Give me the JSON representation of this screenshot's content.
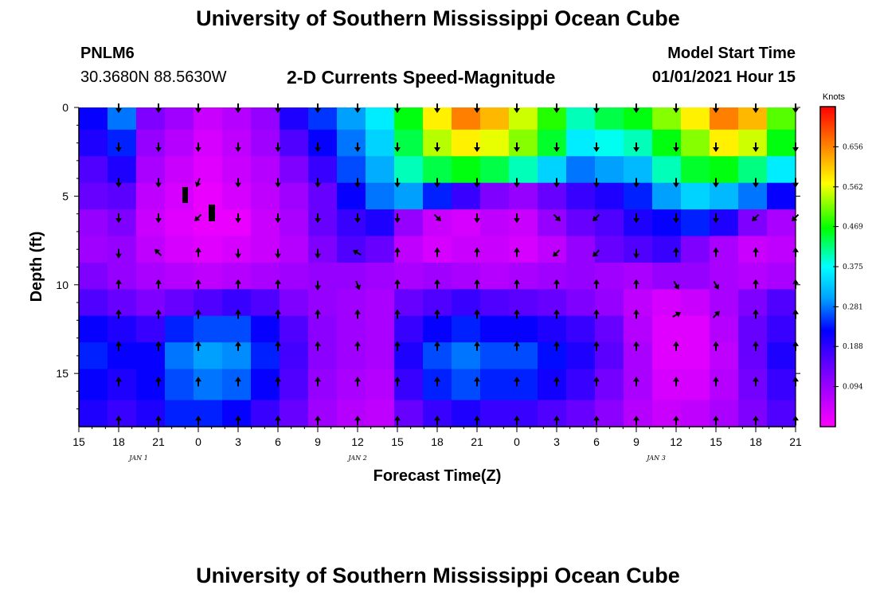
{
  "header": {
    "title": "University of Southern Mississippi Ocean Cube",
    "station_id": "PNLM6",
    "station_coords": "30.3680N 88.5630W",
    "plot_title": "2-D Currents Speed-Magnitude",
    "model_start_label": "Model Start Time",
    "model_start_value": "01/01/2021 Hour 15"
  },
  "footer": {
    "title": "University of Southern Mississippi Ocean Cube"
  },
  "chart_data": {
    "type": "heatmap",
    "title": "2-D Currents Speed-Magnitude",
    "xlabel": "Forecast Time(Z)",
    "ylabel": "Depth (ft)",
    "x_range_hours": [
      0,
      54
    ],
    "y_range_ft": [
      0,
      18
    ],
    "x_ticks": [
      {
        "h": 0,
        "label": "15"
      },
      {
        "h": 3,
        "label": "18"
      },
      {
        "h": 6,
        "label": "21"
      },
      {
        "h": 9,
        "label": "0"
      },
      {
        "h": 12,
        "label": "3"
      },
      {
        "h": 15,
        "label": "6"
      },
      {
        "h": 18,
        "label": "9"
      },
      {
        "h": 21,
        "label": "12"
      },
      {
        "h": 24,
        "label": "15"
      },
      {
        "h": 27,
        "label": "18"
      },
      {
        "h": 30,
        "label": "21"
      },
      {
        "h": 33,
        "label": "0"
      },
      {
        "h": 36,
        "label": "3"
      },
      {
        "h": 39,
        "label": "6"
      },
      {
        "h": 42,
        "label": "9"
      },
      {
        "h": 45,
        "label": "12"
      },
      {
        "h": 48,
        "label": "15"
      },
      {
        "h": 51,
        "label": "18"
      },
      {
        "h": 54,
        "label": "21"
      }
    ],
    "date_labels": [
      {
        "h": 4.5,
        "label": "JAN 1"
      },
      {
        "h": 21,
        "label": "JAN 2"
      },
      {
        "h": 43.5,
        "label": "JAN 3"
      }
    ],
    "y_ticks": [
      {
        "v": 0,
        "label": "0"
      },
      {
        "v": 5,
        "label": "5"
      },
      {
        "v": 10,
        "label": "10"
      },
      {
        "v": 15,
        "label": "15"
      }
    ],
    "colorbar": {
      "unit": "Knots",
      "min": 0.0,
      "max": 0.75,
      "tick_values": [
        0.094,
        0.188,
        0.281,
        0.375,
        0.469,
        0.562,
        0.656
      ],
      "tick_labels": [
        "0.094",
        "0.188",
        "0.281",
        "0.375",
        "0.469",
        "0.562",
        "0.656"
      ]
    },
    "depth_bins_ft": [
      0.5,
      2,
      3.5,
      5,
      6.5,
      8,
      9.5,
      11,
      12.5,
      14,
      15.5,
      17.5
    ],
    "speed_knots": [
      [
        0.22,
        0.28,
        0.12,
        0.09,
        0.05,
        0.07,
        0.1,
        0.2,
        0.25,
        0.3,
        0.36,
        0.46,
        0.58,
        0.66,
        0.62,
        0.55,
        0.48,
        0.4,
        0.44,
        0.46,
        0.52,
        0.58,
        0.66,
        0.62,
        0.5
      ],
      [
        0.2,
        0.24,
        0.1,
        0.07,
        0.04,
        0.06,
        0.09,
        0.16,
        0.22,
        0.28,
        0.34,
        0.44,
        0.54,
        0.58,
        0.56,
        0.52,
        0.45,
        0.36,
        0.38,
        0.4,
        0.46,
        0.52,
        0.58,
        0.55,
        0.46
      ],
      [
        0.16,
        0.2,
        0.08,
        0.05,
        0.03,
        0.05,
        0.07,
        0.12,
        0.18,
        0.26,
        0.31,
        0.4,
        0.44,
        0.46,
        0.44,
        0.4,
        0.34,
        0.28,
        0.3,
        0.32,
        0.4,
        0.45,
        0.46,
        0.42,
        0.36
      ],
      [
        0.14,
        0.15,
        0.06,
        0.04,
        0.02,
        0.04,
        0.06,
        0.09,
        0.14,
        0.22,
        0.28,
        0.3,
        0.24,
        0.18,
        0.12,
        0.1,
        0.14,
        0.18,
        0.2,
        0.24,
        0.3,
        0.34,
        0.32,
        0.28,
        0.22
      ],
      [
        0.1,
        0.12,
        0.05,
        0.03,
        0.02,
        0.02,
        0.05,
        0.08,
        0.14,
        0.18,
        0.2,
        0.1,
        0.05,
        0.04,
        0.06,
        0.05,
        0.1,
        0.14,
        0.16,
        0.2,
        0.22,
        0.24,
        0.2,
        0.12,
        0.08
      ],
      [
        0.09,
        0.1,
        0.06,
        0.04,
        0.03,
        0.04,
        0.05,
        0.07,
        0.12,
        0.16,
        0.14,
        0.06,
        0.04,
        0.05,
        0.05,
        0.04,
        0.06,
        0.1,
        0.14,
        0.16,
        0.18,
        0.12,
        0.08,
        0.05,
        0.06
      ],
      [
        0.12,
        0.1,
        0.08,
        0.07,
        0.06,
        0.07,
        0.08,
        0.09,
        0.1,
        0.1,
        0.09,
        0.08,
        0.09,
        0.08,
        0.07,
        0.08,
        0.09,
        0.1,
        0.09,
        0.08,
        0.1,
        0.1,
        0.08,
        0.07,
        0.08
      ],
      [
        0.16,
        0.14,
        0.12,
        0.14,
        0.16,
        0.18,
        0.16,
        0.12,
        0.1,
        0.09,
        0.08,
        0.14,
        0.16,
        0.18,
        0.16,
        0.15,
        0.14,
        0.12,
        0.1,
        0.06,
        0.04,
        0.05,
        0.08,
        0.12,
        0.16
      ],
      [
        0.22,
        0.2,
        0.18,
        0.24,
        0.26,
        0.26,
        0.22,
        0.16,
        0.11,
        0.09,
        0.08,
        0.18,
        0.22,
        0.24,
        0.22,
        0.22,
        0.2,
        0.18,
        0.14,
        0.07,
        0.03,
        0.03,
        0.07,
        0.14,
        0.18
      ],
      [
        0.24,
        0.22,
        0.22,
        0.28,
        0.3,
        0.29,
        0.24,
        0.17,
        0.11,
        0.09,
        0.08,
        0.2,
        0.26,
        0.28,
        0.26,
        0.26,
        0.23,
        0.2,
        0.15,
        0.08,
        0.03,
        0.03,
        0.06,
        0.14,
        0.2
      ],
      [
        0.22,
        0.2,
        0.22,
        0.26,
        0.28,
        0.27,
        0.22,
        0.16,
        0.1,
        0.08,
        0.07,
        0.18,
        0.24,
        0.26,
        0.24,
        0.24,
        0.21,
        0.18,
        0.13,
        0.08,
        0.04,
        0.04,
        0.07,
        0.13,
        0.18
      ],
      [
        0.2,
        0.18,
        0.2,
        0.24,
        0.24,
        0.22,
        0.18,
        0.14,
        0.09,
        0.07,
        0.06,
        0.14,
        0.18,
        0.2,
        0.18,
        0.18,
        0.16,
        0.14,
        0.11,
        0.07,
        0.05,
        0.06,
        0.08,
        0.12,
        0.16
      ]
    ],
    "arrow_depths_ft": [
      0,
      2.2,
      4.2,
      6.2,
      8.2,
      10,
      11.7,
      13.5,
      15.5,
      17.7
    ],
    "arrow_hours_every_3": [
      3,
      6,
      9,
      12,
      15,
      18,
      21,
      24,
      27,
      30,
      33,
      36,
      39,
      42,
      45,
      48,
      51,
      54
    ],
    "arrow_direction_deg": [
      [
        180,
        180,
        180,
        180,
        180,
        180,
        180,
        180,
        180,
        180,
        180,
        180,
        180,
        180,
        180,
        180,
        180,
        180
      ],
      [
        180,
        180,
        180,
        180,
        180,
        180,
        180,
        180,
        180,
        180,
        180,
        180,
        180,
        180,
        180,
        180,
        180,
        180
      ],
      [
        180,
        180,
        200,
        180,
        180,
        180,
        180,
        180,
        180,
        180,
        180,
        180,
        180,
        180,
        180,
        180,
        180,
        180
      ],
      [
        180,
        180,
        225,
        180,
        180,
        180,
        180,
        180,
        135,
        180,
        180,
        135,
        225,
        180,
        180,
        180,
        225,
        225
      ],
      [
        180,
        315,
        0,
        180,
        180,
        180,
        300,
        0,
        0,
        0,
        0,
        225,
        225,
        180,
        0,
        0,
        0,
        0
      ],
      [
        0,
        0,
        0,
        0,
        0,
        180,
        160,
        0,
        0,
        0,
        0,
        0,
        0,
        0,
        150,
        150,
        0,
        0
      ],
      [
        0,
        0,
        0,
        0,
        0,
        0,
        0,
        0,
        0,
        0,
        0,
        0,
        0,
        0,
        60,
        45,
        0,
        0
      ],
      [
        0,
        0,
        0,
        0,
        0,
        0,
        0,
        0,
        0,
        0,
        0,
        0,
        0,
        0,
        0,
        0,
        0,
        0
      ],
      [
        0,
        0,
        0,
        0,
        0,
        0,
        0,
        0,
        0,
        0,
        0,
        0,
        0,
        0,
        0,
        0,
        0,
        0
      ],
      [
        0,
        0,
        0,
        0,
        0,
        0,
        0,
        0,
        0,
        0,
        0,
        0,
        0,
        0,
        0,
        0,
        0,
        0
      ]
    ]
  }
}
